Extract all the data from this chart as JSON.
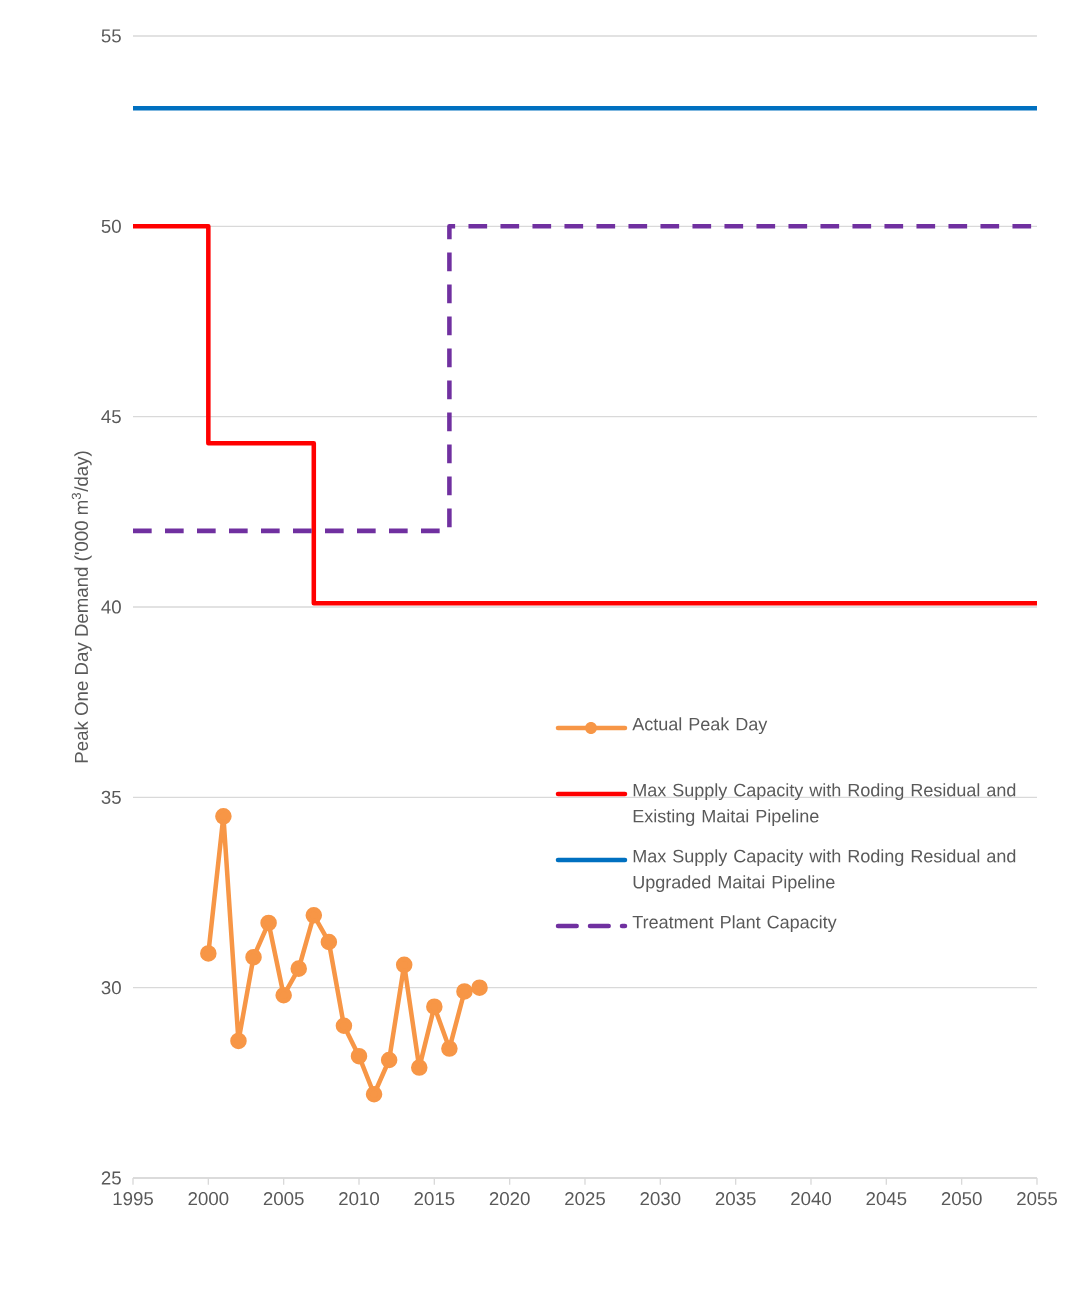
{
  "chart_data": {
    "type": "line",
    "ylabel": "Peak One Day Demand ('000 m$^{3}$/day)",
    "xlim": [
      1995,
      2055
    ],
    "ylim": [
      25,
      55
    ],
    "xticks": [
      1995,
      2000,
      2005,
      2010,
      2015,
      2020,
      2025,
      2030,
      2035,
      2040,
      2045,
      2050,
      2055
    ],
    "yticks": [
      25,
      30,
      35,
      40,
      45,
      50,
      55
    ],
    "grid": "y",
    "legend": "right",
    "series": [
      {
        "name": "Actual Peak Day",
        "color": "#f79646",
        "marker": "circle",
        "line_style": "solid",
        "x": [
          2000,
          2001,
          2002,
          2003,
          2004,
          2005,
          2006,
          2007,
          2008,
          2009,
          2010,
          2011,
          2012,
          2013,
          2014,
          2015,
          2016,
          2017,
          2018
        ],
        "values": [
          30.9,
          34.5,
          28.6,
          30.8,
          31.7,
          29.8,
          30.5,
          31.9,
          31.2,
          29.0,
          28.2,
          27.2,
          28.1,
          30.6,
          27.9,
          29.5,
          28.4,
          29.9,
          30.0
        ]
      },
      {
        "name": "Max Supply Capacity with Roding Residual and Existing Maitai Pipeline",
        "type": "step",
        "color": "#ff0000",
        "marker": "none",
        "line_style": "solid",
        "x": [
          1995,
          2000,
          2007,
          2055
        ],
        "values": [
          50,
          44.3,
          40.1,
          40.1
        ]
      },
      {
        "name": "Max Supply Capacity with Roding Residual and Upgraded Maitai Pipeline",
        "color": "#0070c0",
        "marker": "none",
        "line_style": "solid",
        "x": [
          1995,
          2055
        ],
        "values": [
          53.1,
          53.1
        ]
      },
      {
        "name": "Treatment Plant Capacity",
        "type": "step",
        "color": "#7030a0",
        "marker": "none",
        "line_style": "dashed",
        "x": [
          1995,
          2016,
          2055
        ],
        "values": [
          42,
          50,
          50
        ]
      }
    ]
  }
}
